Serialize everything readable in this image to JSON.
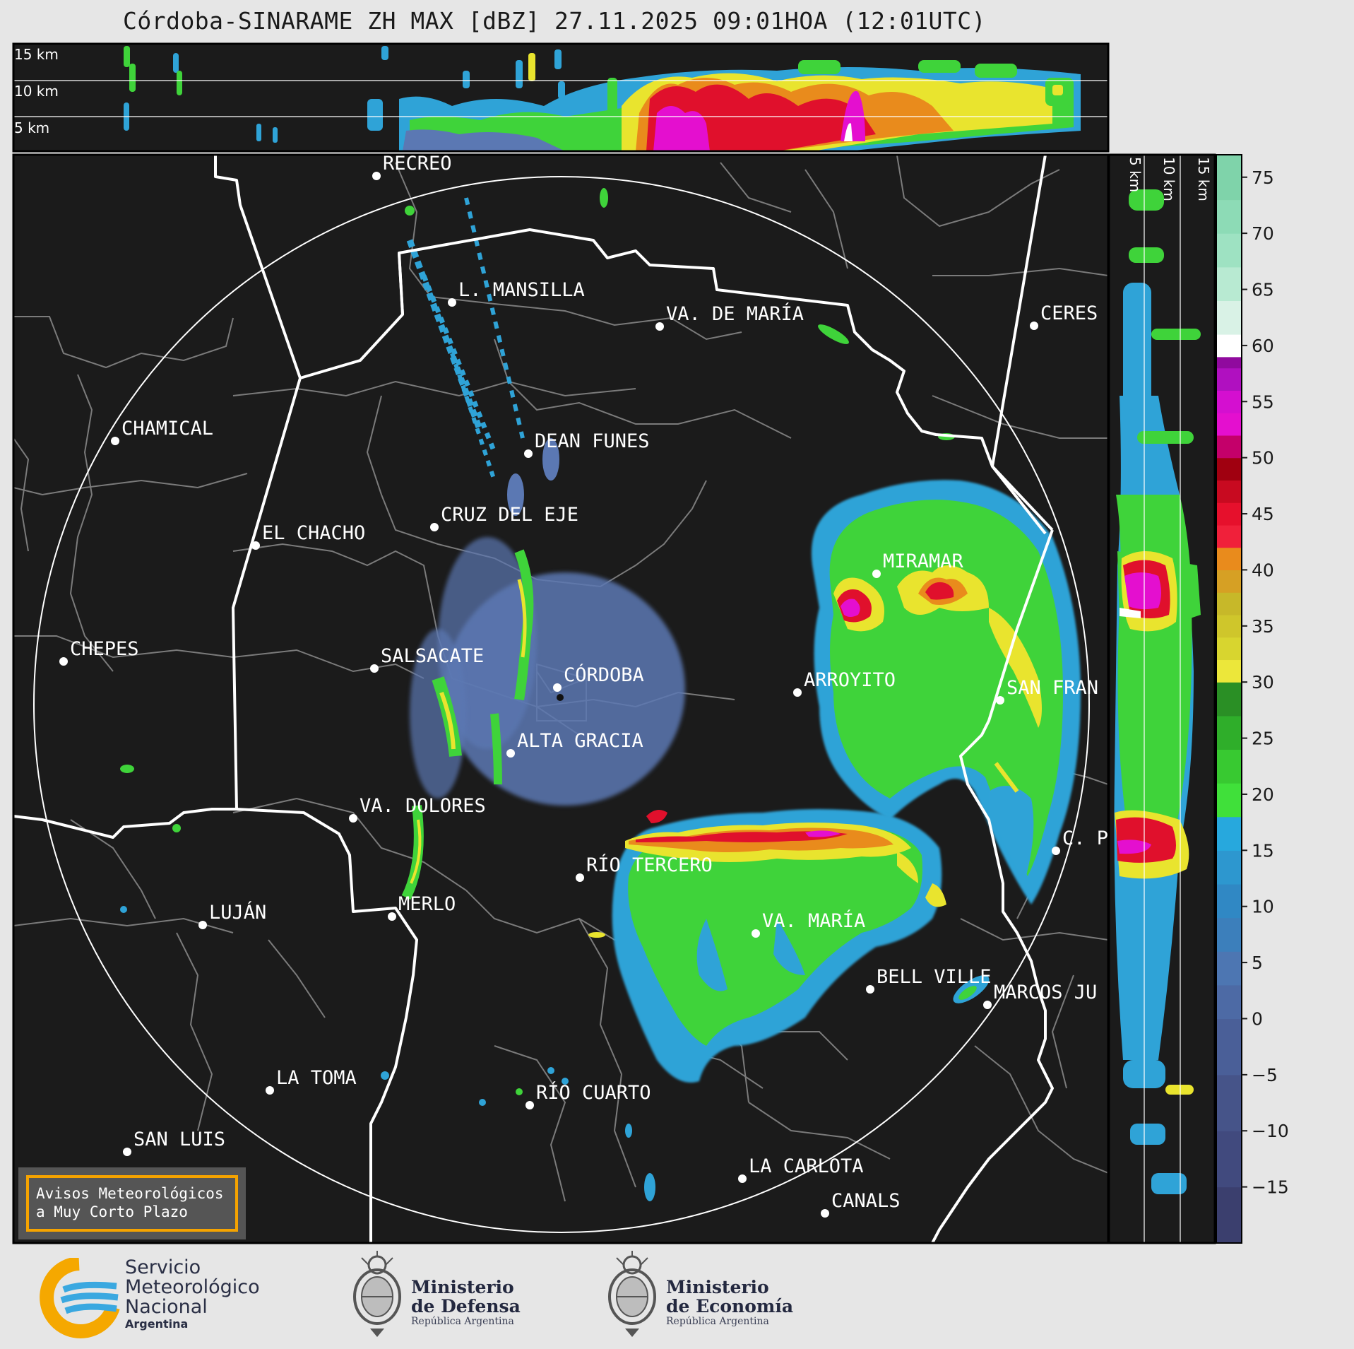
{
  "title": "Córdoba-SINARAME ZH MAX [dBZ] 27.11.2025 09:01HOA (12:01UTC)",
  "altitude_labels_top": [
    "15 km",
    "10 km",
    "5 km"
  ],
  "altitude_labels_side": [
    "5 km",
    "10 km",
    "15 km"
  ],
  "colorbar": {
    "ticks": [
      "75",
      "70",
      "65",
      "60",
      "55",
      "50",
      "45",
      "40",
      "35",
      "30",
      "25",
      "20",
      "15",
      "10",
      "5",
      "0",
      "−5",
      "−10",
      "−15"
    ],
    "colors": {
      "background": "#1b1b1b",
      "weak_blue": "#5b78b3",
      "blue": "#2fa3d7",
      "green": "#3fd33a",
      "yellow": "#e9e42e",
      "orange": "#e98b1c",
      "red": "#e0102c",
      "magenta": "#e40fcf",
      "white": "#ffffff"
    }
  },
  "cities": [
    {
      "name": "RECREO"
    },
    {
      "name": "L. MANSILLA"
    },
    {
      "name": "VA. DE MARÍA"
    },
    {
      "name": "CERES"
    },
    {
      "name": "CHAMICAL"
    },
    {
      "name": "DEAN FUNES"
    },
    {
      "name": "CRUZ DEL EJE"
    },
    {
      "name": "EL CHACHO"
    },
    {
      "name": "MIRAMAR"
    },
    {
      "name": "CHEPES"
    },
    {
      "name": "SALSACATE"
    },
    {
      "name": "CÓRDOBA"
    },
    {
      "name": "ARROYITO"
    },
    {
      "name": "SAN FRAN"
    },
    {
      "name": "ALTA GRACIA"
    },
    {
      "name": "VA. DOLORES"
    },
    {
      "name": "C. P"
    },
    {
      "name": "RÍO TERCERO"
    },
    {
      "name": "MERLO"
    },
    {
      "name": "LUJÁN"
    },
    {
      "name": "VA. MARÍA"
    },
    {
      "name": "BELL VILLE"
    },
    {
      "name": "MARCOS JU"
    },
    {
      "name": "LA TOMA"
    },
    {
      "name": "RÍO CUARTO"
    },
    {
      "name": "SAN LUIS"
    },
    {
      "name": "LA CARLOTA"
    },
    {
      "name": "CANALS"
    }
  ],
  "warning_box": {
    "line1": "Avisos Meteorológicos",
    "line2": "a Muy Corto Plazo"
  },
  "logos": {
    "smn": {
      "line1": "Servicio",
      "line2": "Meteorológico",
      "line3": "Nacional",
      "line4": "Argentina"
    },
    "defensa": {
      "line1": "Ministerio",
      "line2": "de Defensa",
      "line3": "República Argentina"
    },
    "economia": {
      "line1": "Ministerio",
      "line2": "de Economía",
      "line3": "República Argentina"
    }
  }
}
